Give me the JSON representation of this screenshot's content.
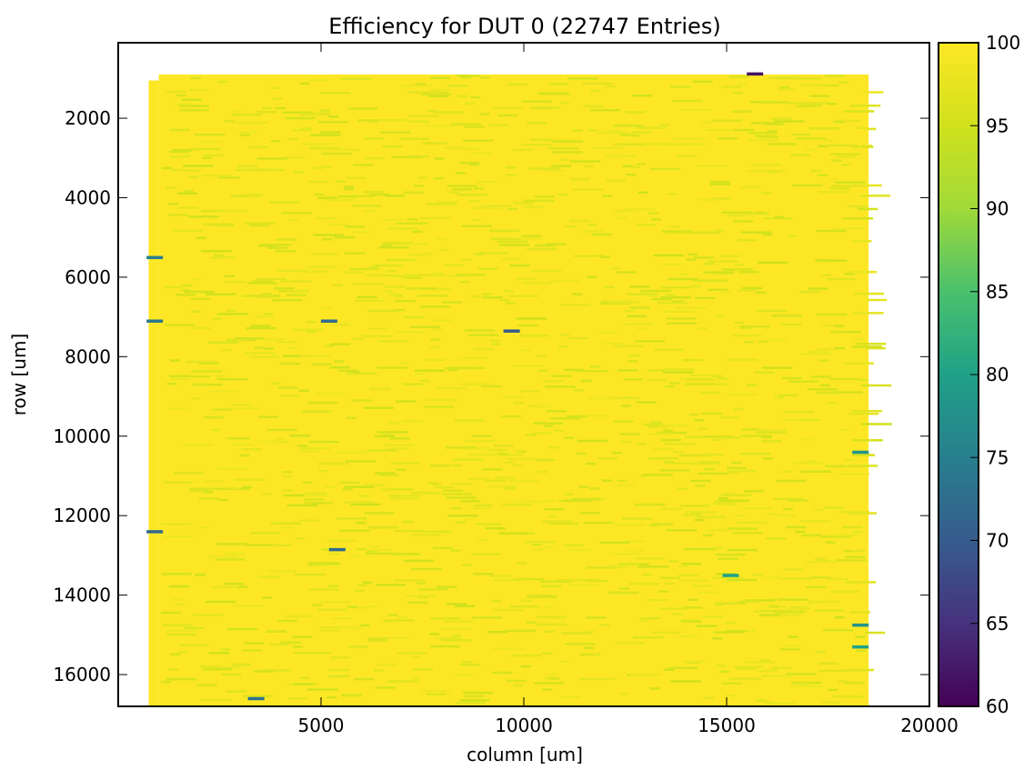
{
  "chart_data": {
    "type": "heatmap",
    "title": "Efficiency for DUT 0 (22747 Entries)",
    "xlabel": "column [um]",
    "ylabel": "row [um]",
    "xlim": [
      0,
      20000
    ],
    "ylim": [
      16800,
      100
    ],
    "x_ticks": [
      5000,
      10000,
      15000,
      20000
    ],
    "y_ticks": [
      2000,
      4000,
      6000,
      8000,
      10000,
      12000,
      14000,
      16000
    ],
    "colorbar": {
      "colormap": "viridis",
      "min": 60,
      "max": 100,
      "ticks": [
        60,
        65,
        70,
        75,
        80,
        85,
        90,
        95,
        100
      ]
    },
    "data_extent": {
      "x_range": [
        750,
        18500
      ],
      "y_range": [
        900,
        16800
      ]
    },
    "background_value": 100,
    "colors": {
      "dominant": "#fde725",
      "frequent": "#c8e020"
    },
    "notable_low_cells": [
      {
        "x": 900,
        "y": 5500,
        "value": 75
      },
      {
        "x": 900,
        "y": 7100,
        "value": 74
      },
      {
        "x": 5200,
        "y": 7100,
        "value": 72
      },
      {
        "x": 9700,
        "y": 7350,
        "value": 70
      },
      {
        "x": 900,
        "y": 12400,
        "value": 72
      },
      {
        "x": 5400,
        "y": 12850,
        "value": 72
      },
      {
        "x": 3400,
        "y": 16600,
        "value": 73
      },
      {
        "x": 15100,
        "y": 13500,
        "value": 80
      },
      {
        "x": 15700,
        "y": 880,
        "value": 62
      },
      {
        "x": 18300,
        "y": 10400,
        "value": 78
      },
      {
        "x": 18300,
        "y": 14750,
        "value": 78
      },
      {
        "x": 18300,
        "y": 15300,
        "value": 80
      }
    ]
  }
}
